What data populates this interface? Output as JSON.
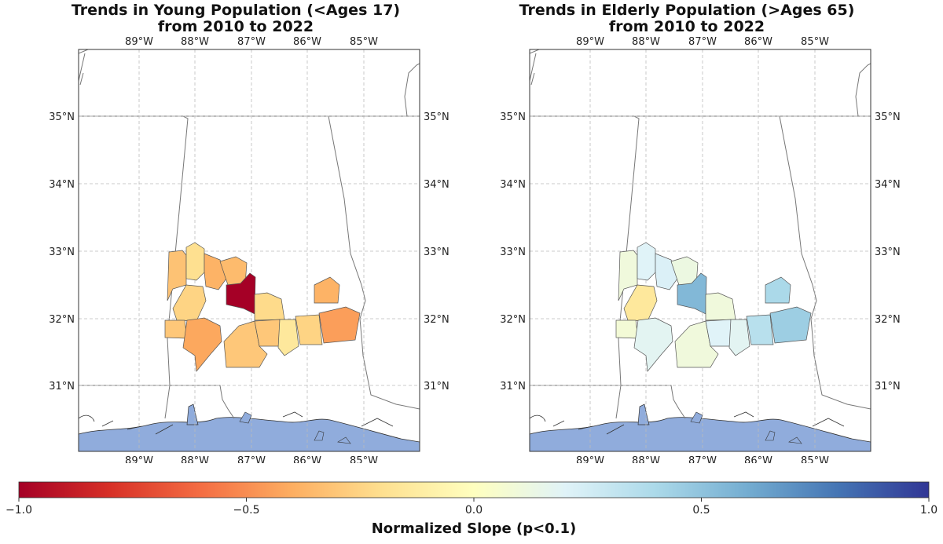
{
  "panels": [
    {
      "title_line1": "Trends in Young Population (<Ages 17)",
      "title_line2": "from 2010 to 2022",
      "regions": [
        {
          "id": "r1",
          "value": -0.32
        },
        {
          "id": "r2",
          "value": -0.2
        },
        {
          "id": "r3",
          "value": -0.38
        },
        {
          "id": "r4",
          "value": -0.35
        },
        {
          "id": "r5",
          "value": -0.25
        },
        {
          "id": "r6",
          "value": -1.0
        },
        {
          "id": "r7",
          "value": -0.22
        },
        {
          "id": "r8",
          "value": -0.3
        },
        {
          "id": "r9",
          "value": -0.42
        },
        {
          "id": "r10",
          "value": -0.3
        },
        {
          "id": "r11",
          "value": -0.3
        },
        {
          "id": "r12",
          "value": -0.15
        },
        {
          "id": "r13",
          "value": -0.25
        },
        {
          "id": "r14",
          "value": -0.45
        },
        {
          "id": "r15",
          "value": -0.38
        }
      ]
    },
    {
      "title_line1": "Trends in Elderly Population (>Ages 65)",
      "title_line2": "from 2010 to 2022",
      "regions": [
        {
          "id": "r1",
          "value": 0.1
        },
        {
          "id": "r2",
          "value": 0.2
        },
        {
          "id": "r3",
          "value": 0.22
        },
        {
          "id": "r4",
          "value": 0.12
        },
        {
          "id": "r5",
          "value": -0.15
        },
        {
          "id": "r6",
          "value": 0.55
        },
        {
          "id": "r7",
          "value": 0.1
        },
        {
          "id": "r8",
          "value": 0.08
        },
        {
          "id": "r9",
          "value": 0.18
        },
        {
          "id": "r10",
          "value": 0.1
        },
        {
          "id": "r11",
          "value": 0.2
        },
        {
          "id": "r12",
          "value": 0.18
        },
        {
          "id": "r13",
          "value": 0.35
        },
        {
          "id": "r14",
          "value": 0.45
        },
        {
          "id": "r15",
          "value": 0.4
        }
      ]
    }
  ],
  "axes": {
    "lon_ticks": [
      "89°W",
      "88°W",
      "87°W",
      "86°W",
      "85°W"
    ],
    "lat_ticks": [
      "35°N",
      "34°N",
      "33°N",
      "32°N",
      "31°N"
    ],
    "gridlines": true
  },
  "colorbar": {
    "ticks": [
      "−1.0",
      "−0.5",
      "0.0",
      "0.5",
      "1.0"
    ],
    "label": "Normalized Slope (p<0.1)",
    "min": -1.0,
    "max": 1.0,
    "colormap": "RdYlBu"
  },
  "colors": {
    "water": "#90acdc",
    "land": "#ffffff",
    "border": "#777777",
    "grid": "#bbbbbb",
    "region_edge": "#555555"
  }
}
